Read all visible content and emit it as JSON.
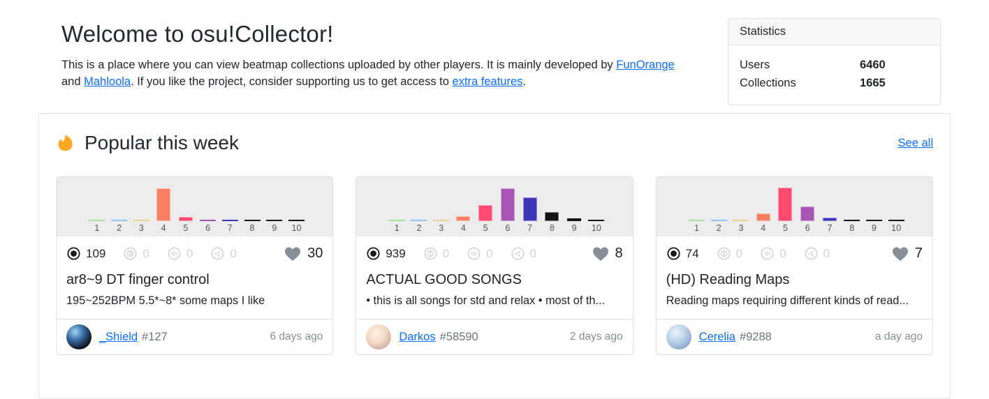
{
  "header": {
    "title": "Welcome to osu!Collector!",
    "intro": {
      "p1": "This is a place where you can view beatmap collections uploaded by other players. It is mainly developed by ",
      "link1": "FunOrange",
      "p2": " and ",
      "link2": "Mahloola",
      "p3": ". If you like the project, consider supporting us to get access to ",
      "link3": "extra features",
      "p4": "."
    }
  },
  "statistics": {
    "header": "Statistics",
    "rows": [
      {
        "label": "Users",
        "value": "6460"
      },
      {
        "label": "Collections",
        "value": "1665"
      }
    ]
  },
  "popular": {
    "title": "Popular this week",
    "see_all": "See all",
    "flame_color": "#FFA726"
  },
  "chart_categories": [
    "1",
    "2",
    "3",
    "4",
    "5",
    "6",
    "7",
    "8",
    "9",
    "10"
  ],
  "bar_colors": [
    "#a8e0a0",
    "#8fc3ee",
    "#e6d38c",
    "#f97e62",
    "#fb4a6e",
    "#a655b2",
    "#3d35b8",
    "#141414",
    "#141414",
    "#141414"
  ],
  "chart_data": [
    {
      "type": "bar",
      "categories": [
        "1",
        "2",
        "3",
        "4",
        "5",
        "6",
        "7",
        "8",
        "9",
        "10"
      ],
      "values": [
        0,
        0,
        0,
        47,
        6,
        0,
        0,
        0,
        0,
        0
      ],
      "title": "difficulty spread - ar8~9 DT finger control"
    },
    {
      "type": "bar",
      "categories": [
        "1",
        "2",
        "3",
        "4",
        "5",
        "6",
        "7",
        "8",
        "9",
        "10"
      ],
      "values": [
        0,
        0,
        0,
        7,
        23,
        47,
        34,
        13,
        4,
        0
      ],
      "title": "difficulty spread - ACTUAL GOOD SONGS"
    },
    {
      "type": "bar",
      "categories": [
        "1",
        "2",
        "3",
        "4",
        "5",
        "6",
        "7",
        "8",
        "9",
        "10"
      ],
      "values": [
        0,
        0,
        0,
        11,
        48,
        21,
        5,
        0,
        0,
        0
      ],
      "title": "difficulty spread - (HD) Reading Maps"
    }
  ],
  "cards": [
    {
      "chart_values": [
        0,
        0,
        0,
        47,
        6,
        0,
        0,
        0,
        0,
        0
      ],
      "stats": {
        "std": "109",
        "taiko": "0",
        "mania": "0",
        "catch": "0",
        "likes": "30"
      },
      "title": "ar8~9 DT finger control",
      "description": "195~252BPM 5.5*~8* some maps I like",
      "uploader": {
        "name": "_Shield",
        "id": "#127",
        "time": "6 days ago",
        "avatar_style": "background: radial-gradient(circle at 35% 30%, #9fd4ee 0%, #3a6ea8 35%, #0b0d18 75%)"
      }
    },
    {
      "chart_values": [
        0,
        0,
        0,
        7,
        23,
        47,
        34,
        13,
        4,
        0
      ],
      "stats": {
        "std": "939",
        "taiko": "0",
        "mania": "0",
        "catch": "0",
        "likes": "8"
      },
      "title": "ACTUAL GOOD SONGS",
      "description": "• this is all songs for std and relax • most of th...",
      "uploader": {
        "name": "Darkos",
        "id": "#58590",
        "time": "2 days ago",
        "avatar_style": "background: radial-gradient(circle at 40% 35%, #fdf3e6 0%, #f3d8c4 45%, #c9a9a2 80%)"
      }
    },
    {
      "chart_values": [
        0,
        0,
        0,
        11,
        48,
        21,
        5,
        0,
        0,
        0
      ],
      "stats": {
        "std": "74",
        "taiko": "0",
        "mania": "0",
        "catch": "0",
        "likes": "7"
      },
      "title": "(HD) Reading Maps",
      "description": "Reading maps requiring different kinds of read...",
      "uploader": {
        "name": "Cerelia",
        "id": "#9288",
        "time": "a day ago",
        "avatar_style": "background: radial-gradient(circle at 38% 32%, #eaf4fc 0%, #b8cfe6 45%, #7f9cc0 85%)"
      }
    }
  ]
}
